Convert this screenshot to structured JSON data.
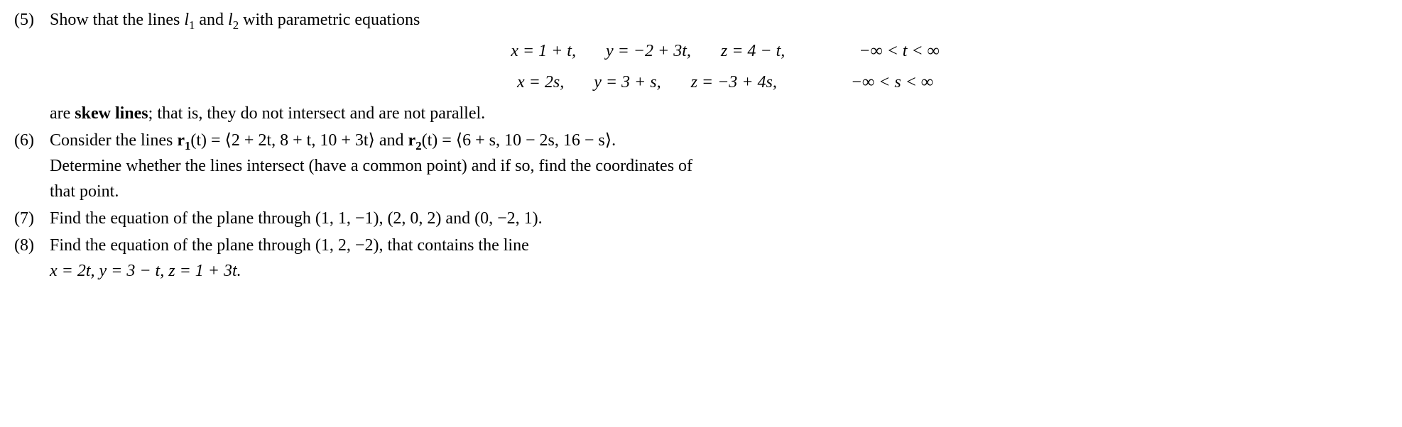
{
  "typography": {
    "font_family": "Times New Roman",
    "base_fontsize": 24,
    "line_height": 1.5,
    "text_color": "#000000",
    "background_color": "#ffffff"
  },
  "p5": {
    "num": "(5)",
    "intro_pre": "Show that the lines ",
    "l1": "l",
    "l1_sub": "1",
    "and": " and ",
    "l2": "l",
    "l2_sub": "2",
    "intro_post": " with parametric equations",
    "line1": {
      "x": "x = 1 + t,",
      "y": "y = −2 + 3t,",
      "z": "z = 4 − t,",
      "range": "−∞ < t < ∞"
    },
    "line2": {
      "x": "x = 2s,",
      "y": "y = 3 + s,",
      "z": "z = −3 + 4s,",
      "range": "−∞ < s < ∞"
    },
    "conclusion_pre": "are ",
    "conclusion_bold": "skew lines",
    "conclusion_post": "; that is, they do not intersect and are not parallel."
  },
  "p6": {
    "num": "(6)",
    "line1_pre": "Consider the lines ",
    "r1_bold": "r",
    "r1_sub": "1",
    "r1_arg": "(t) = ⟨2 + 2t,  8 + t,  10 + 3t⟩",
    "and": " and ",
    "r2_bold": "r",
    "r2_sub": "2",
    "r2_arg": "(t) = ⟨6 + s,  10 − 2s,  16 − s⟩.",
    "line2": "Determine whether the lines intersect (have a common point) and if so, find the coordinates of",
    "line3": "that point."
  },
  "p7": {
    "num": "(7)",
    "text": "Find the equation of the plane through (1, 1, −1), (2, 0, 2) and (0, −2, 1)."
  },
  "p8": {
    "num": "(8)",
    "text": "Find the equation of the plane through (1, 2, −2), that contains the line",
    "eq": "x = 2t,  y = 3 − t,  z = 1 + 3t."
  }
}
